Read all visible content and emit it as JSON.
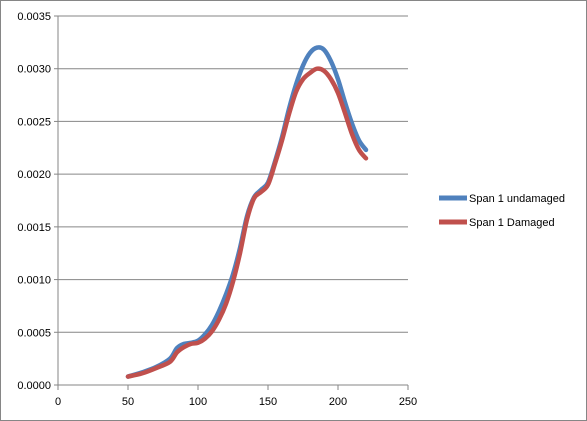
{
  "chart_data": {
    "type": "line",
    "title": "",
    "xlabel": "",
    "ylabel": "",
    "xlim": [
      0,
      250
    ],
    "ylim": [
      0,
      0.0035
    ],
    "x_ticks": [
      "0",
      "50",
      "100",
      "150",
      "200",
      "250"
    ],
    "y_ticks": [
      "0.0000",
      "0.0005",
      "0.0010",
      "0.0015",
      "0.0020",
      "0.0025",
      "0.0030",
      "0.0035"
    ],
    "grid": "horizontal",
    "legend_position": "right",
    "series": [
      {
        "name": "Span 1 undamaged",
        "color": "#4F81BD",
        "x": [
          50,
          60,
          70,
          80,
          85,
          90,
          95,
          100,
          105,
          110,
          115,
          120,
          125,
          130,
          135,
          140,
          145,
          150,
          155,
          160,
          165,
          170,
          175,
          180,
          185,
          190,
          195,
          200,
          205,
          210,
          215,
          220
        ],
        "y": [
          8e-05,
          0.00012,
          0.00017,
          0.00025,
          0.00035,
          0.00039,
          0.0004,
          0.00042,
          0.00048,
          0.00057,
          0.0007,
          0.00086,
          0.00105,
          0.0013,
          0.0016,
          0.00178,
          0.00185,
          0.00192,
          0.00212,
          0.00235,
          0.00262,
          0.00285,
          0.00303,
          0.00315,
          0.0032,
          0.00318,
          0.00307,
          0.0029,
          0.00268,
          0.00248,
          0.00232,
          0.00223
        ]
      },
      {
        "name": "Span 1 Damaged",
        "color": "#C0504D",
        "x": [
          50,
          60,
          70,
          80,
          85,
          90,
          95,
          100,
          105,
          110,
          115,
          120,
          125,
          130,
          135,
          140,
          145,
          150,
          155,
          160,
          165,
          170,
          175,
          180,
          185,
          190,
          195,
          200,
          205,
          210,
          215,
          220
        ],
        "y": [
          8e-05,
          0.00011,
          0.00016,
          0.00022,
          0.00031,
          0.00036,
          0.00039,
          0.0004,
          0.00044,
          0.00051,
          0.00062,
          0.00077,
          0.00098,
          0.00125,
          0.00157,
          0.00177,
          0.00183,
          0.0019,
          0.0021,
          0.00232,
          0.00257,
          0.00278,
          0.0029,
          0.00296,
          0.003,
          0.00298,
          0.0029,
          0.00277,
          0.00258,
          0.00238,
          0.00223,
          0.00215
        ]
      }
    ]
  }
}
